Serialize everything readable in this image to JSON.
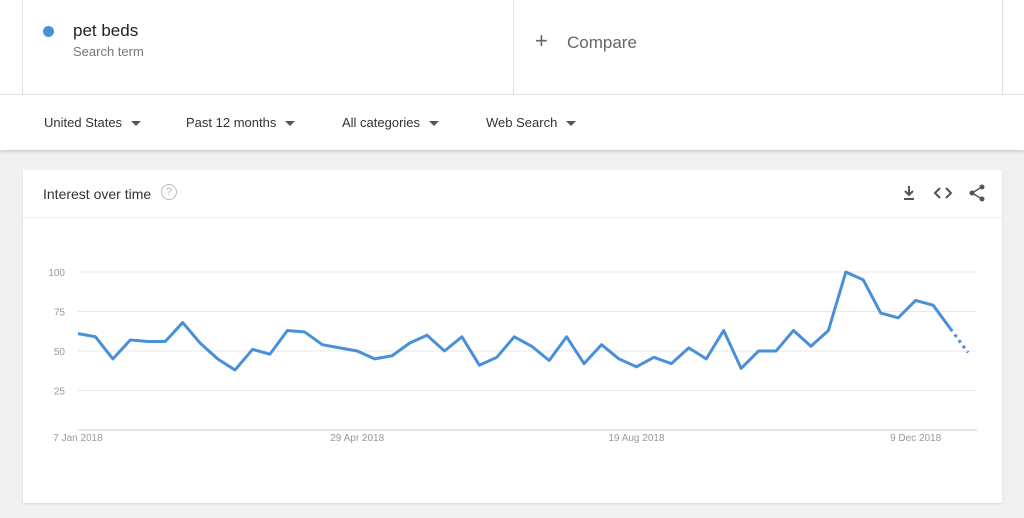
{
  "search_term": {
    "name": "pet beds",
    "subtitle": "Search term",
    "color": "#4a90d9"
  },
  "compare": {
    "label": "Compare",
    "icon": "plus-icon"
  },
  "filters": [
    {
      "label": "United States"
    },
    {
      "label": "Past 12 months"
    },
    {
      "label": "All categories"
    },
    {
      "label": "Web Search"
    }
  ],
  "card": {
    "title": "Interest over time",
    "icons": [
      "help-icon",
      "download-icon",
      "embed-icon",
      "share-icon"
    ]
  },
  "chart_data": {
    "type": "line",
    "title": "Interest over time",
    "ylim": [
      0,
      100
    ],
    "yticks": [
      25,
      50,
      75,
      100
    ],
    "xtick_labels": [
      {
        "label": "7 Jan 2018",
        "index": 0
      },
      {
        "label": "29 Apr 2018",
        "index": 16
      },
      {
        "label": "19 Aug 2018",
        "index": 32
      },
      {
        "label": "9 Dec 2018",
        "index": 48
      }
    ],
    "x_start": "7 Jan 2018",
    "x_step": "1 week",
    "grid": true,
    "color": "#4a90d9",
    "last_point_partial": true,
    "values": [
      61,
      59,
      45,
      57,
      56,
      56,
      68,
      55,
      45,
      38,
      51,
      48,
      63,
      62,
      54,
      52,
      50,
      45,
      47,
      55,
      60,
      50,
      59,
      41,
      46,
      59,
      53,
      44,
      59,
      42,
      54,
      45,
      40,
      46,
      42,
      52,
      45,
      63,
      39,
      50,
      50,
      63,
      53,
      63,
      100,
      95,
      74,
      71,
      82,
      79,
      64,
      49
    ]
  }
}
